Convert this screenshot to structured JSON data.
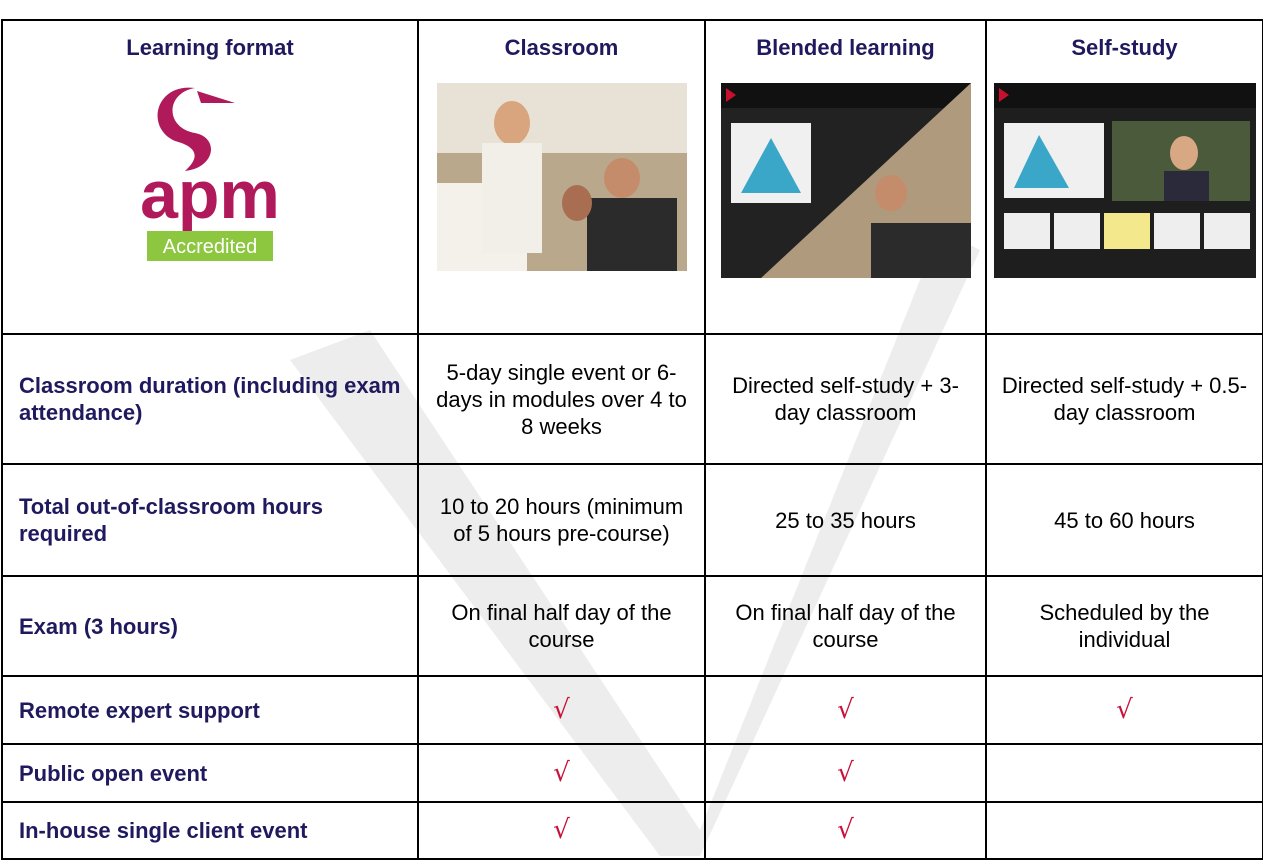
{
  "table": {
    "headers": [
      "Learning format",
      "Classroom",
      "Blended learning",
      "Self-study"
    ],
    "logo": {
      "mark": "apm",
      "badge": "Accredited"
    },
    "rows": [
      [
        "Classroom duration (including exam attendance)",
        "5-day single event or 6-days in modules over 4 to 8 weeks",
        "Directed self-study + 3-day classroom",
        "Directed self-study + 0.5-day classroom"
      ],
      [
        "Total out-of-classroom hours required",
        "10 to 20 hours (minimum of 5 hours pre-course)",
        "25 to 35 hours",
        "45 to 60 hours"
      ],
      [
        "Exam (3 hours)",
        "On final half day of the course",
        "On final half day of the course",
        "Scheduled by the individual"
      ],
      [
        "Remote expert support",
        "√",
        "√",
        "√"
      ],
      [
        "Public open event",
        "√",
        "√",
        null
      ],
      [
        "In-house single client event",
        "√",
        "√",
        null
      ]
    ]
  }
}
